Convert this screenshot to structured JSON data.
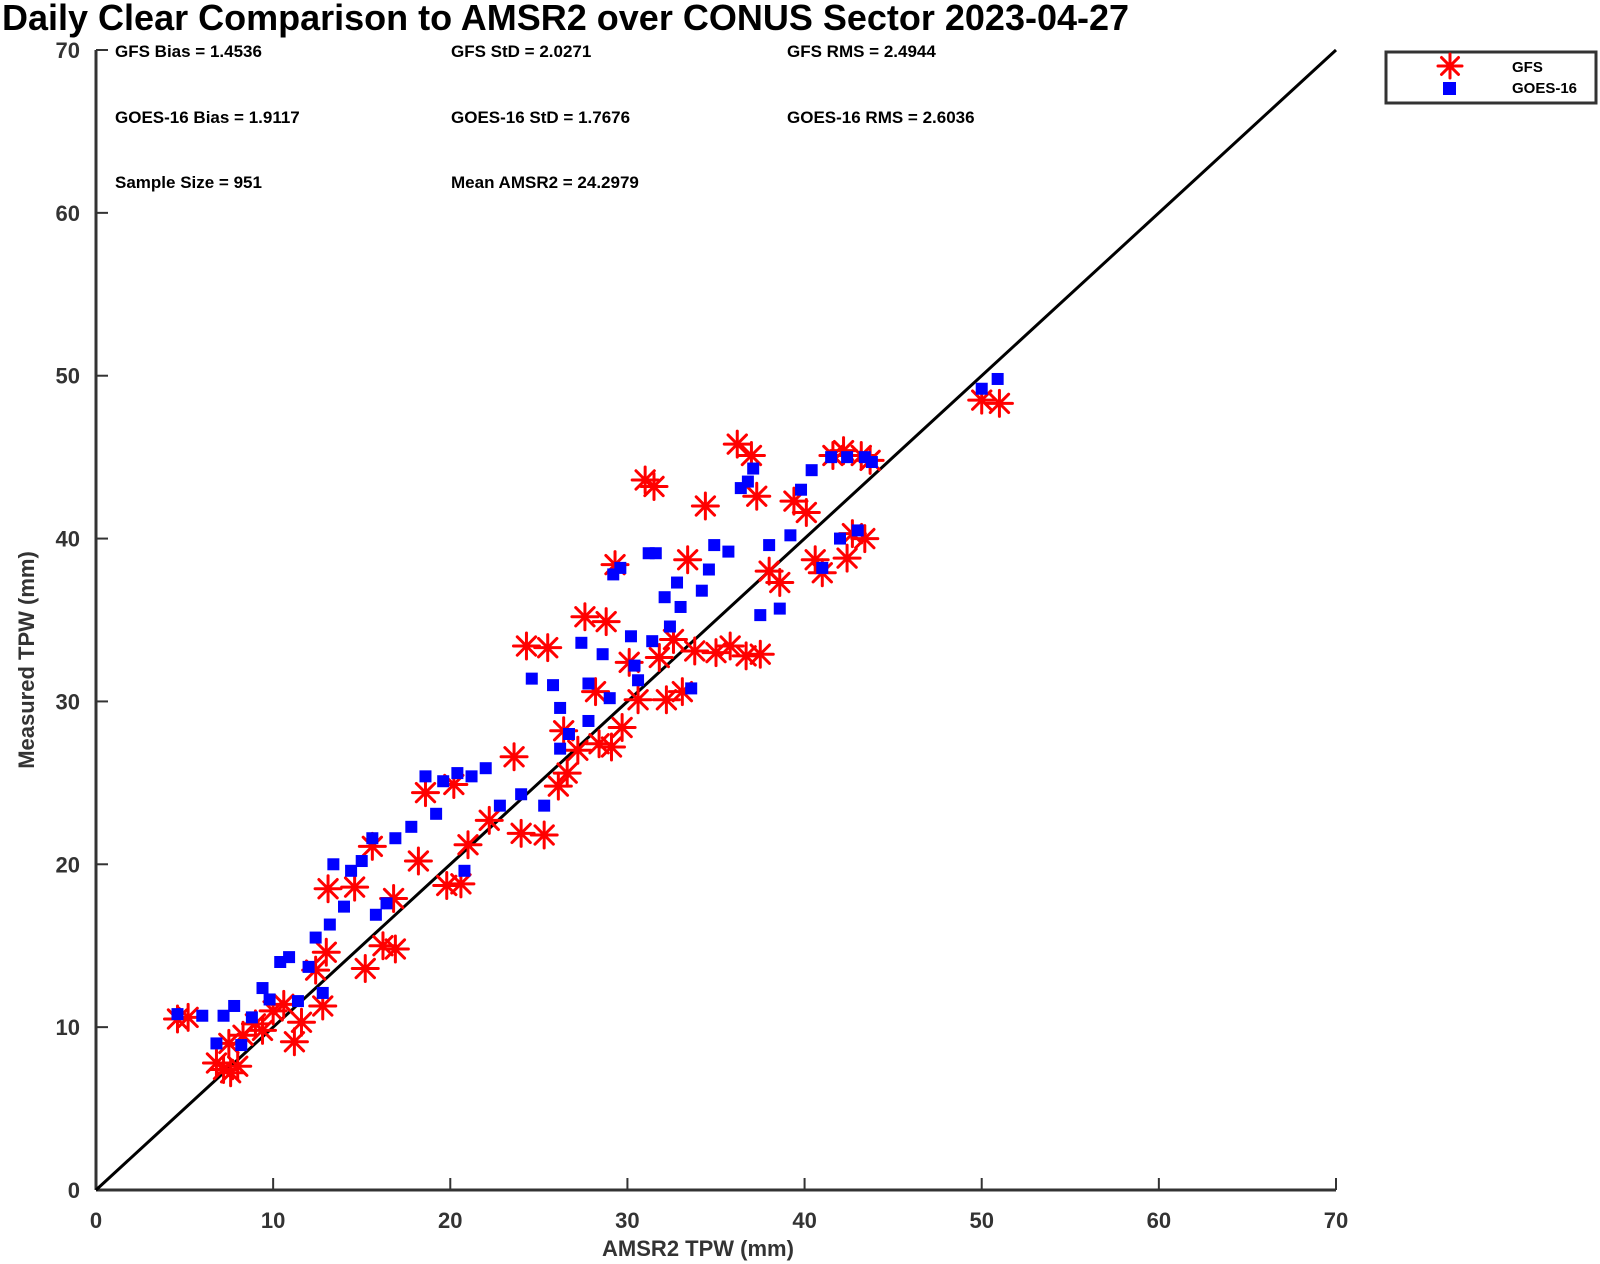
{
  "colors": {
    "gfs": "#ff0000",
    "goes": "#0000ff",
    "axis": "#333333",
    "line": "#000000"
  },
  "chart_data": {
    "type": "scatter",
    "title": "Daily Clear Comparison to AMSR2 over CONUS Sector 2023-04-27",
    "xlabel": "AMSR2 TPW (mm)",
    "ylabel": "Measured TPW (mm)",
    "xlim": [
      0,
      70
    ],
    "ylim": [
      0,
      70
    ],
    "xticks": [
      "0",
      "10",
      "20",
      "30",
      "40",
      "50",
      "60",
      "70"
    ],
    "yticks": [
      "0",
      "10",
      "20",
      "30",
      "40",
      "50",
      "60",
      "70"
    ],
    "reference_line": "1:1",
    "legend_position": "top-right",
    "stats": {
      "gfs_bias": "GFS Bias = 1.4536",
      "gfs_std": "GFS StD = 2.0271",
      "gfs_rms": "GFS RMS = 2.4944",
      "goes_bias": "GOES-16 Bias = 1.9117",
      "goes_std": "GOES-16 StD = 1.7676",
      "goes_rms": "GOES-16 RMS = 2.6036",
      "sample_size": "Sample Size = 951",
      "mean_amsr2": "Mean AMSR2 = 24.2979"
    },
    "series": [
      {
        "name": "GFS",
        "marker": "asterisk",
        "points": [
          [
            4.6,
            10.5
          ],
          [
            5.2,
            10.6
          ],
          [
            6.8,
            7.8
          ],
          [
            7.2,
            7.4
          ],
          [
            7.6,
            7.2
          ],
          [
            8.0,
            7.6
          ],
          [
            7.5,
            9.0
          ],
          [
            8.3,
            9.5
          ],
          [
            9.0,
            10.2
          ],
          [
            9.4,
            9.8
          ],
          [
            10.0,
            11.0
          ],
          [
            10.6,
            11.4
          ],
          [
            11.2,
            9.1
          ],
          [
            11.6,
            10.3
          ],
          [
            12.8,
            11.3
          ],
          [
            12.4,
            13.5
          ],
          [
            13.0,
            14.6
          ],
          [
            13.1,
            18.5
          ],
          [
            14.6,
            18.6
          ],
          [
            15.2,
            13.6
          ],
          [
            15.6,
            21.1
          ],
          [
            16.2,
            15.0
          ],
          [
            16.9,
            14.8
          ],
          [
            16.8,
            17.9
          ],
          [
            18.2,
            20.2
          ],
          [
            18.6,
            24.4
          ],
          [
            19.8,
            18.7
          ],
          [
            20.6,
            18.8
          ],
          [
            20.2,
            24.9
          ],
          [
            21.0,
            21.2
          ],
          [
            22.2,
            22.7
          ],
          [
            23.6,
            26.6
          ],
          [
            24.0,
            21.9
          ],
          [
            24.3,
            33.4
          ],
          [
            25.3,
            21.8
          ],
          [
            25.5,
            33.3
          ],
          [
            26.1,
            24.8
          ],
          [
            26.6,
            25.6
          ],
          [
            27.2,
            27.0
          ],
          [
            27.6,
            35.2
          ],
          [
            28.4,
            27.4
          ],
          [
            28.8,
            34.9
          ],
          [
            29.3,
            38.4
          ],
          [
            29.1,
            27.2
          ],
          [
            29.7,
            28.4
          ],
          [
            30.1,
            32.4
          ],
          [
            31.0,
            43.6
          ],
          [
            31.5,
            43.2
          ],
          [
            32.2,
            30.1
          ],
          [
            33.1,
            30.6
          ],
          [
            33.4,
            38.7
          ],
          [
            33.8,
            33.1
          ],
          [
            34.4,
            42.0
          ],
          [
            35.0,
            33.0
          ],
          [
            35.8,
            33.4
          ],
          [
            36.2,
            45.8
          ],
          [
            36.7,
            32.8
          ],
          [
            37.0,
            45.1
          ],
          [
            37.3,
            42.6
          ],
          [
            37.5,
            32.9
          ],
          [
            38.0,
            38.0
          ],
          [
            38.6,
            37.3
          ],
          [
            39.4,
            42.3
          ],
          [
            40.1,
            41.6
          ],
          [
            40.6,
            38.7
          ],
          [
            41.0,
            37.9
          ],
          [
            41.6,
            45.1
          ],
          [
            42.2,
            45.4
          ],
          [
            42.4,
            38.8
          ],
          [
            42.7,
            40.3
          ],
          [
            43.2,
            45.1
          ],
          [
            43.4,
            40.0
          ],
          [
            43.7,
            44.8
          ],
          [
            50.0,
            48.5
          ],
          [
            51.0,
            48.3
          ],
          [
            30.6,
            30.1
          ],
          [
            31.8,
            32.7
          ],
          [
            32.6,
            33.8
          ],
          [
            28.2,
            30.6
          ],
          [
            26.4,
            28.2
          ]
        ]
      },
      {
        "name": "GOES-16",
        "marker": "square",
        "points": [
          [
            4.6,
            10.8
          ],
          [
            6.0,
            10.7
          ],
          [
            6.8,
            9.0
          ],
          [
            7.2,
            10.7
          ],
          [
            7.8,
            11.3
          ],
          [
            8.2,
            8.9
          ],
          [
            8.8,
            10.6
          ],
          [
            9.4,
            12.4
          ],
          [
            9.8,
            11.7
          ],
          [
            10.4,
            14.0
          ],
          [
            10.9,
            14.3
          ],
          [
            11.4,
            11.6
          ],
          [
            12.0,
            13.7
          ],
          [
            12.4,
            15.5
          ],
          [
            12.8,
            12.1
          ],
          [
            13.2,
            16.3
          ],
          [
            13.4,
            20.0
          ],
          [
            14.0,
            17.4
          ],
          [
            14.4,
            19.6
          ],
          [
            15.0,
            20.2
          ],
          [
            15.6,
            21.6
          ],
          [
            15.8,
            16.9
          ],
          [
            16.4,
            17.6
          ],
          [
            16.9,
            21.6
          ],
          [
            17.8,
            22.3
          ],
          [
            18.6,
            25.4
          ],
          [
            19.2,
            23.1
          ],
          [
            19.6,
            25.1
          ],
          [
            20.4,
            25.6
          ],
          [
            20.8,
            19.6
          ],
          [
            21.2,
            25.4
          ],
          [
            22.0,
            25.9
          ],
          [
            22.8,
            23.6
          ],
          [
            24.0,
            24.3
          ],
          [
            24.6,
            31.4
          ],
          [
            25.3,
            23.6
          ],
          [
            25.8,
            31.0
          ],
          [
            26.2,
            29.6
          ],
          [
            26.7,
            28.0
          ],
          [
            27.4,
            33.6
          ],
          [
            27.8,
            31.1
          ],
          [
            28.6,
            32.9
          ],
          [
            29.2,
            37.8
          ],
          [
            29.6,
            38.2
          ],
          [
            30.2,
            34.0
          ],
          [
            30.6,
            31.3
          ],
          [
            31.2,
            39.1
          ],
          [
            31.6,
            39.1
          ],
          [
            32.1,
            36.4
          ],
          [
            32.8,
            37.3
          ],
          [
            33.6,
            30.8
          ],
          [
            34.2,
            36.8
          ],
          [
            34.9,
            39.6
          ],
          [
            35.7,
            39.2
          ],
          [
            36.4,
            43.1
          ],
          [
            36.8,
            43.5
          ],
          [
            37.1,
            44.3
          ],
          [
            37.5,
            35.3
          ],
          [
            38.0,
            39.6
          ],
          [
            38.6,
            35.7
          ],
          [
            39.2,
            40.2
          ],
          [
            39.8,
            43.0
          ],
          [
            40.4,
            44.2
          ],
          [
            41.0,
            38.2
          ],
          [
            41.5,
            45.0
          ],
          [
            42.0,
            40.0
          ],
          [
            42.4,
            45.0
          ],
          [
            43.0,
            40.5
          ],
          [
            43.4,
            45.0
          ],
          [
            43.8,
            44.7
          ],
          [
            50.0,
            49.2
          ],
          [
            50.9,
            49.8
          ],
          [
            30.4,
            32.2
          ],
          [
            31.4,
            33.7
          ],
          [
            32.4,
            34.6
          ],
          [
            27.8,
            28.8
          ],
          [
            29.0,
            30.2
          ],
          [
            33.0,
            35.8
          ],
          [
            26.2,
            27.1
          ],
          [
            34.6,
            38.1
          ]
        ]
      }
    ]
  }
}
